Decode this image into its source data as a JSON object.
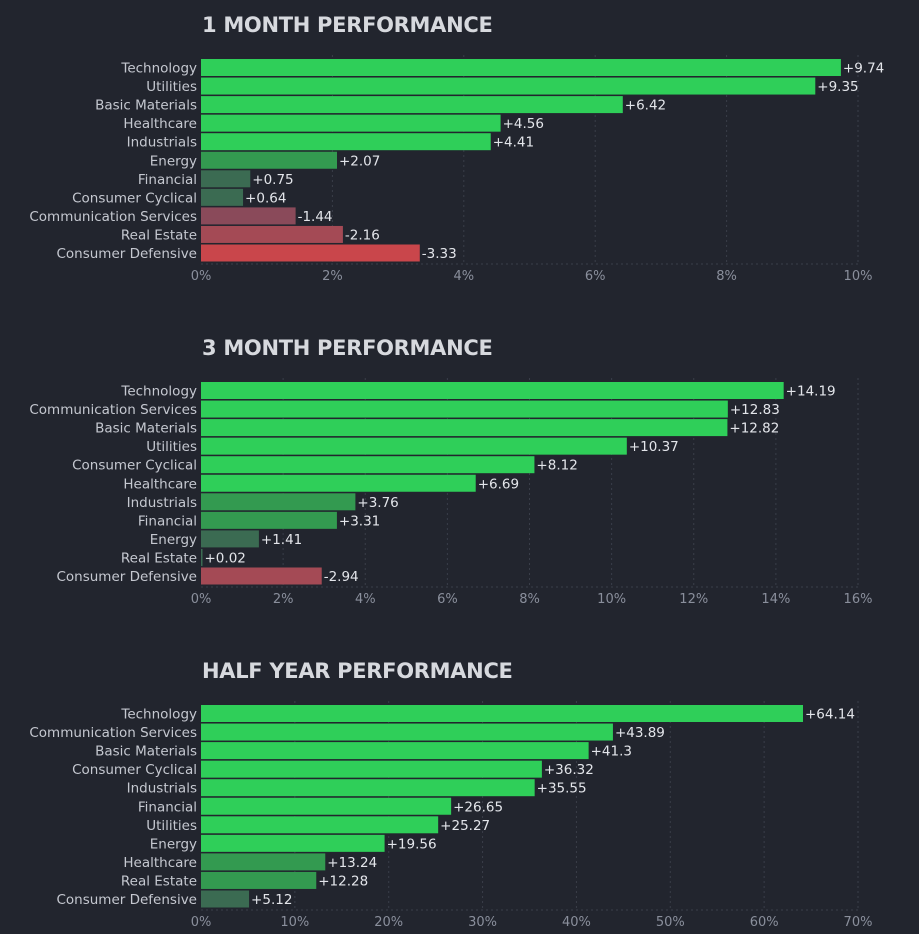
{
  "colors": {
    "background": "#22252e",
    "pos_strong": "#2fcf59",
    "pos_medium": "#339a50",
    "pos_weak": "#3b6b52",
    "neg_weak": "#8a4a5a",
    "neg_medium": "#a44a55",
    "neg_strong": "#c9464b"
  },
  "chart_data": [
    {
      "type": "bar",
      "orientation": "horizontal",
      "title": "1 MONTH PERFORMANCE",
      "categories": [
        "Technology",
        "Utilities",
        "Basic Materials",
        "Healthcare",
        "Industrials",
        "Energy",
        "Financial",
        "Consumer Cyclical",
        "Communication Services",
        "Real Estate",
        "Consumer Defensive"
      ],
      "values": [
        9.74,
        9.35,
        6.42,
        4.56,
        4.41,
        2.07,
        0.75,
        0.64,
        -1.44,
        -2.16,
        -3.33
      ],
      "value_labels": [
        "+9.74",
        "+9.35",
        "+6.42",
        "+4.56",
        "+4.41",
        "+2.07",
        "+0.75",
        "+0.64",
        "-1.44",
        "-2.16",
        "-3.33"
      ],
      "xlim": [
        0,
        10
      ],
      "xticks": [
        0,
        2,
        4,
        6,
        8,
        10
      ],
      "xtick_labels": [
        "0%",
        "2%",
        "4%",
        "6%",
        "8%",
        "10%"
      ]
    },
    {
      "type": "bar",
      "orientation": "horizontal",
      "title": "3 MONTH PERFORMANCE",
      "categories": [
        "Technology",
        "Communication Services",
        "Basic Materials",
        "Utilities",
        "Consumer Cyclical",
        "Healthcare",
        "Industrials",
        "Financial",
        "Energy",
        "Real Estate",
        "Consumer Defensive"
      ],
      "values": [
        14.19,
        12.83,
        12.82,
        10.37,
        8.12,
        6.69,
        3.76,
        3.31,
        1.41,
        0.02,
        -2.94
      ],
      "value_labels": [
        "+14.19",
        "+12.83",
        "+12.82",
        "+10.37",
        "+8.12",
        "+6.69",
        "+3.76",
        "+3.31",
        "+1.41",
        "+0.02",
        "-2.94"
      ],
      "xlim": [
        0,
        16
      ],
      "xticks": [
        0,
        2,
        4,
        6,
        8,
        10,
        12,
        14,
        16
      ],
      "xtick_labels": [
        "0%",
        "2%",
        "4%",
        "6%",
        "8%",
        "10%",
        "12%",
        "14%",
        "16%"
      ]
    },
    {
      "type": "bar",
      "orientation": "horizontal",
      "title": "HALF YEAR PERFORMANCE",
      "categories": [
        "Technology",
        "Communication Services",
        "Basic Materials",
        "Consumer Cyclical",
        "Industrials",
        "Financial",
        "Utilities",
        "Energy",
        "Healthcare",
        "Real Estate",
        "Consumer Defensive"
      ],
      "values": [
        64.14,
        43.89,
        41.3,
        36.32,
        35.55,
        26.65,
        25.27,
        19.56,
        13.24,
        12.28,
        5.12
      ],
      "value_labels": [
        "+64.14",
        "+43.89",
        "+41.3",
        "+36.32",
        "+35.55",
        "+26.65",
        "+25.27",
        "+19.56",
        "+13.24",
        "+12.28",
        "+5.12"
      ],
      "xlim": [
        0,
        70
      ],
      "xticks": [
        0,
        10,
        20,
        30,
        40,
        50,
        60,
        70
      ],
      "xtick_labels": [
        "0%",
        "10%",
        "20%",
        "30%",
        "40%",
        "50%",
        "60%",
        "70%"
      ]
    }
  ]
}
